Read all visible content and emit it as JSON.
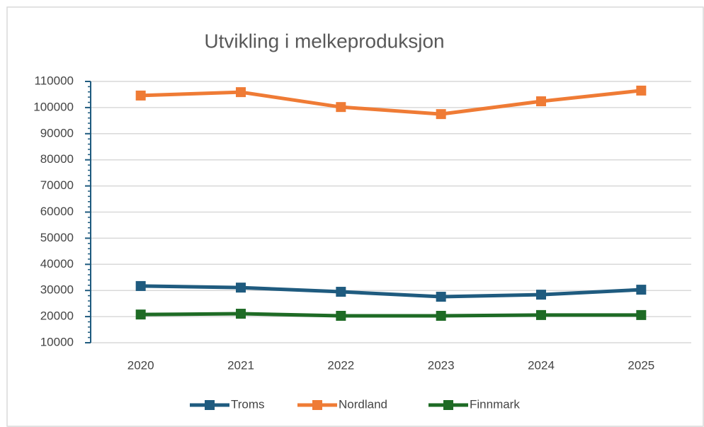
{
  "chart_data": {
    "type": "line",
    "title": "Utvikling i melkeproduksjon",
    "categories": [
      "2020",
      "2021",
      "2022",
      "2023",
      "2024",
      "2025"
    ],
    "series": [
      {
        "name": "Troms",
        "color": "#1f5b7f",
        "values": [
          31700,
          31100,
          29500,
          27600,
          28400,
          30300
        ]
      },
      {
        "name": "Nordland",
        "color": "#ef7b35",
        "values": [
          104600,
          105900,
          100200,
          97500,
          102400,
          106500
        ]
      },
      {
        "name": "Finnmark",
        "color": "#1e6b25",
        "values": [
          20800,
          21100,
          20300,
          20300,
          20600,
          20600
        ]
      }
    ],
    "ylim": [
      10000,
      110000
    ],
    "yticks": [
      10000,
      20000,
      30000,
      40000,
      50000,
      60000,
      70000,
      80000,
      90000,
      100000,
      110000
    ],
    "grid": true,
    "legend": "bottom"
  }
}
